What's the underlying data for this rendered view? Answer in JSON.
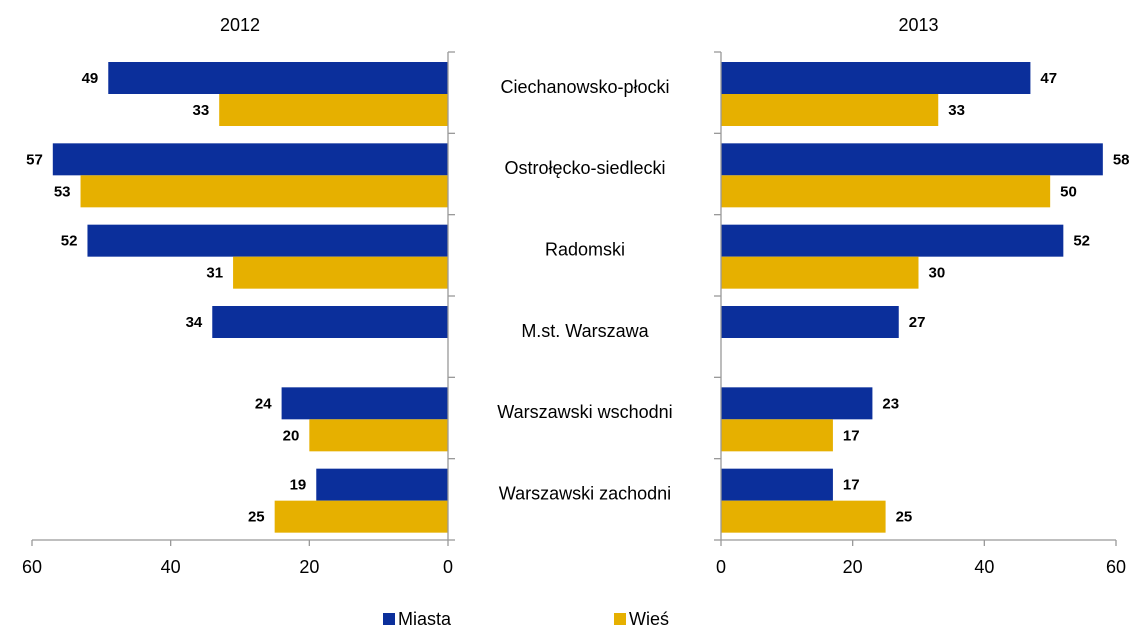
{
  "chart_data": {
    "type": "bar",
    "categories": [
      "Ciechanowsko-płocki",
      "Ostrołęcko-siedlecki",
      "Radomski",
      "M.st. Warszawa",
      "Warszawski wschodni",
      "Warszawski zachodni"
    ],
    "series": [
      {
        "name": "Miasta",
        "color": "#0b2f9b"
      },
      {
        "name": "Wieś",
        "color": "#e6b000"
      }
    ],
    "panels": [
      {
        "title": "2012",
        "xlim": [
          60,
          0
        ],
        "xticks": [
          60,
          40,
          20,
          0
        ],
        "series": [
          {
            "values": [
              49,
              57,
              52,
              34,
              24,
              19
            ]
          },
          {
            "values": [
              33,
              53,
              31,
              null,
              20,
              25
            ]
          }
        ]
      },
      {
        "title": "2013",
        "xlim": [
          0,
          60
        ],
        "xticks": [
          0,
          20,
          40,
          60
        ],
        "series": [
          {
            "values": [
              47,
              58,
              52,
              27,
              23,
              17
            ]
          },
          {
            "values": [
              33,
              50,
              30,
              null,
              17,
              25
            ]
          }
        ]
      }
    ]
  }
}
